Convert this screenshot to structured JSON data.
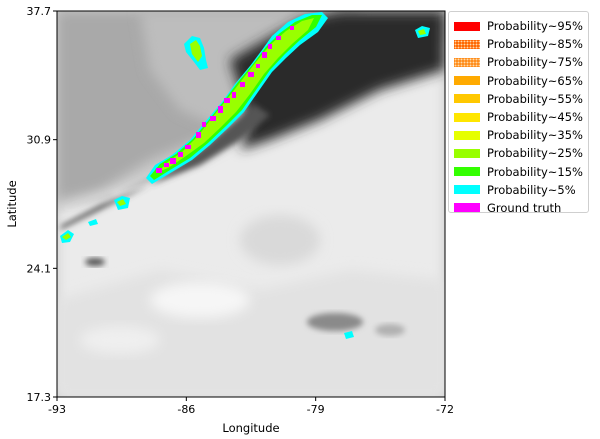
{
  "chart_data": {
    "type": "heatmap",
    "xlabel": "Longitude",
    "ylabel": "Latitude",
    "xlim": [
      -93,
      -72
    ],
    "ylim": [
      17.3,
      37.7
    ],
    "x_ticks": [
      "-93",
      "-86",
      "-79",
      "-72"
    ],
    "x_tick_values": [
      -93,
      -86,
      -79,
      -72
    ],
    "y_ticks": [
      "37.7",
      "30.9",
      "24.1",
      "17.3"
    ],
    "y_tick_values": [
      37.7,
      30.9,
      24.1,
      17.3
    ],
    "background": "grayscale satellite infrared imagery",
    "legend_position": "upper-right-outside",
    "legend": [
      {
        "label": "Probability~95%",
        "color": "#ff0000",
        "pattern": "solid"
      },
      {
        "label": "Probability~85%",
        "color": "#ff6600",
        "pattern": "dotted"
      },
      {
        "label": "Probability~75%",
        "color": "#ff8c1a",
        "pattern": "dotted"
      },
      {
        "label": "Probability~65%",
        "color": "#ffaa00",
        "pattern": "solid"
      },
      {
        "label": "Probability~55%",
        "color": "#ffc800",
        "pattern": "solid"
      },
      {
        "label": "Probability~45%",
        "color": "#ffe600",
        "pattern": "solid"
      },
      {
        "label": "Probability~35%",
        "color": "#e6ff00",
        "pattern": "solid"
      },
      {
        "label": "Probability~25%",
        "color": "#99ff00",
        "pattern": "solid"
      },
      {
        "label": "Probability~15%",
        "color": "#33ff00",
        "pattern": "solid"
      },
      {
        "label": "Probability~5%",
        "color": "#00ffff",
        "pattern": "solid"
      },
      {
        "label": "Ground truth",
        "color": "#ff00ff",
        "pattern": "solid"
      }
    ]
  }
}
